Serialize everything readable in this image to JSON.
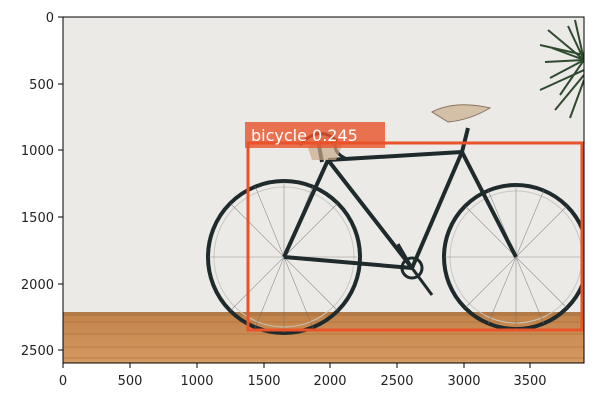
{
  "image": {
    "x_ticks": [
      "0",
      "500",
      "1000",
      "1500",
      "2000",
      "2500",
      "3000",
      "3500"
    ],
    "y_ticks": [
      "0",
      "500",
      "1000",
      "1500",
      "2000",
      "2500"
    ]
  },
  "detection": {
    "label": "bicycle 0.245",
    "box_color": "#e8532a",
    "label_bg": "#e8532a"
  },
  "colors": {
    "wall": "#eceae7",
    "floor": "#c98c52",
    "frame": "#1e2a2c",
    "saddle": "#d4bfa7",
    "plant": "#2f4a2e"
  }
}
